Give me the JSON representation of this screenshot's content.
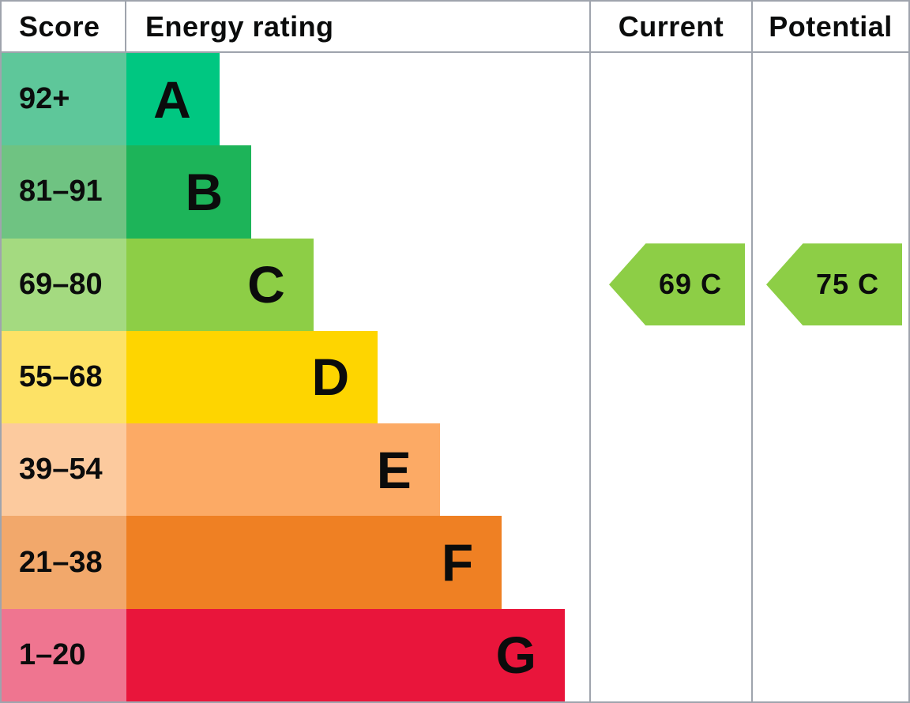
{
  "header": {
    "score": "Score",
    "energy_rating": "Energy rating",
    "current": "Current",
    "potential": "Potential"
  },
  "bands": [
    {
      "letter": "A",
      "score": "92+",
      "band_color": "#00c781",
      "score_color": "#5ec79a",
      "bar_width_pct": 20.1
    },
    {
      "letter": "B",
      "score": "81–91",
      "band_color": "#1db459",
      "score_color": "#6fc382",
      "bar_width_pct": 27.0
    },
    {
      "letter": "C",
      "score": "69–80",
      "band_color": "#8dce46",
      "score_color": "#a4da80",
      "bar_width_pct": 40.4
    },
    {
      "letter": "D",
      "score": "55–68",
      "band_color": "#fed500",
      "score_color": "#fde266",
      "bar_width_pct": 54.3
    },
    {
      "letter": "E",
      "score": "39–54",
      "band_color": "#fcaa65",
      "score_color": "#fcca9e",
      "bar_width_pct": 67.7
    },
    {
      "letter": "F",
      "score": "21–38",
      "band_color": "#ef8023",
      "score_color": "#f2a86b",
      "bar_width_pct": 81.1
    },
    {
      "letter": "G",
      "score": "1–20",
      "band_color": "#e9153b",
      "score_color": "#ef7590",
      "bar_width_pct": 94.7
    }
  ],
  "current": {
    "value": 69,
    "band": "C",
    "label": "69 C"
  },
  "potential": {
    "value": 75,
    "band": "C",
    "label": "75 C"
  },
  "arrow_color": "#8dce46",
  "border_color": "#9fa4ad",
  "text_color": "#0b0c0c",
  "chart_data": {
    "type": "bar",
    "title": "Energy rating",
    "categories": [
      "A",
      "B",
      "C",
      "D",
      "E",
      "F",
      "G"
    ],
    "score_ranges": [
      "92+",
      "81-91",
      "69-80",
      "55-68",
      "39-54",
      "21-38",
      "1-20"
    ],
    "bar_width_pct_of_column": [
      20.1,
      27.0,
      40.4,
      54.3,
      67.7,
      81.1,
      94.7
    ],
    "columns": [
      "Score",
      "Energy rating",
      "Current",
      "Potential"
    ],
    "current": {
      "value": 69,
      "band": "C"
    },
    "potential": {
      "value": 75,
      "band": "C"
    },
    "band_colors": [
      "#00c781",
      "#1db459",
      "#8dce46",
      "#fed500",
      "#fcaa65",
      "#ef8023",
      "#e9153b"
    ],
    "grid": false,
    "legend": false
  }
}
